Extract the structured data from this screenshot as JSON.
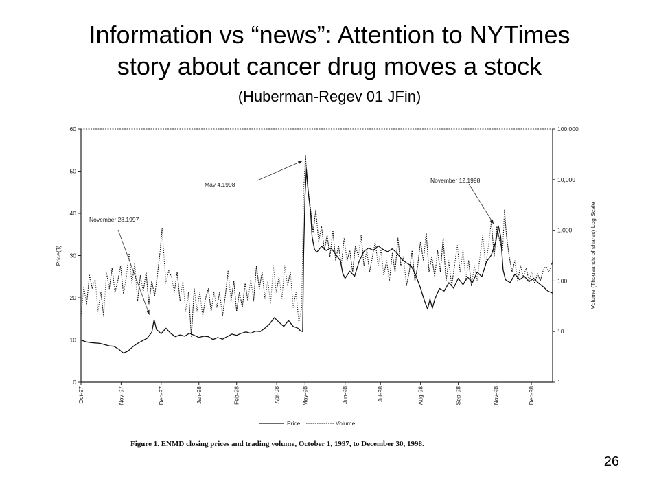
{
  "slide": {
    "title_line1": "Information vs “news”: Attention to NYTimes",
    "title_line2": "story about cancer drug moves a stock",
    "subtitle": "(Huberman-Regev 01 JFin)",
    "page_number": "26"
  },
  "chart_data": {
    "type": "line",
    "caption": "Figure 1. ENMD closing prices and trading volume, October 1, 1997, to December 30, 1998.",
    "xlabel": "",
    "ylabel": "Price($)",
    "y2label": "Volume (Thousands of shares) Log Scale",
    "ylim": [
      0,
      60
    ],
    "y2lim": [
      1,
      100000
    ],
    "y2_scale": "log",
    "y_ticks": [
      "0",
      "10",
      "20",
      "30",
      "40",
      "50",
      "60"
    ],
    "y2_ticks": [
      "1",
      "10",
      "100",
      "1,000",
      "10,000",
      "100,000"
    ],
    "x_ticks": [
      "Oct-97",
      "Nov-97",
      "Dec-97",
      "Jan-98",
      "Feb-98",
      "Apr-98",
      "May-98",
      "Jun-98",
      "Jul-98",
      "Aug-98",
      "Sep-98",
      "Nov-98",
      "Dec-98"
    ],
    "legend": [
      "Price",
      "Volume"
    ],
    "legend_position": "bottom",
    "annotations": [
      {
        "text": "November 28,1997",
        "x": 0.145,
        "y": 15.5
      },
      {
        "text": "May 4,1998",
        "x": 0.47,
        "y": 52
      },
      {
        "text": "November 12,1998",
        "x": 0.875,
        "y": 37
      }
    ],
    "series": [
      {
        "name": "Price",
        "style": "solid",
        "points": [
          [
            0,
            10
          ],
          [
            0.01,
            9.6
          ],
          [
            0.02,
            9.4
          ],
          [
            0.03,
            9.3
          ],
          [
            0.04,
            9.2
          ],
          [
            0.05,
            8.9
          ],
          [
            0.06,
            8.6
          ],
          [
            0.07,
            8.5
          ],
          [
            0.08,
            7.8
          ],
          [
            0.09,
            6.9
          ],
          [
            0.1,
            7.4
          ],
          [
            0.11,
            8.4
          ],
          [
            0.12,
            9.2
          ],
          [
            0.13,
            9.8
          ],
          [
            0.14,
            10.4
          ],
          [
            0.15,
            11.8
          ],
          [
            0.155,
            14.8
          ],
          [
            0.16,
            12.5
          ],
          [
            0.17,
            11.5
          ],
          [
            0.18,
            12.8
          ],
          [
            0.19,
            11.6
          ],
          [
            0.2,
            10.8
          ],
          [
            0.21,
            11.2
          ],
          [
            0.22,
            10.9
          ],
          [
            0.23,
            11.6
          ],
          [
            0.24,
            11.1
          ],
          [
            0.25,
            10.6
          ],
          [
            0.26,
            10.9
          ],
          [
            0.27,
            10.8
          ],
          [
            0.28,
            10.1
          ],
          [
            0.29,
            10.6
          ],
          [
            0.3,
            10.2
          ],
          [
            0.31,
            10.8
          ],
          [
            0.32,
            11.4
          ],
          [
            0.33,
            11.1
          ],
          [
            0.34,
            11.6
          ],
          [
            0.35,
            11.9
          ],
          [
            0.36,
            11.6
          ],
          [
            0.37,
            12.1
          ],
          [
            0.38,
            12.0
          ],
          [
            0.39,
            12.8
          ],
          [
            0.4,
            13.8
          ],
          [
            0.41,
            15.3
          ],
          [
            0.42,
            14.2
          ],
          [
            0.43,
            13.2
          ],
          [
            0.44,
            14.6
          ],
          [
            0.45,
            13.2
          ],
          [
            0.46,
            12.8
          ],
          [
            0.465,
            12.2
          ],
          [
            0.47,
            12.0
          ],
          [
            0.472,
            30.0
          ],
          [
            0.475,
            44.0
          ],
          [
            0.478,
            50.5
          ],
          [
            0.482,
            45.0
          ],
          [
            0.487,
            40.0
          ],
          [
            0.49,
            34.5
          ],
          [
            0.495,
            31.5
          ],
          [
            0.5,
            30.8
          ],
          [
            0.51,
            32.2
          ],
          [
            0.52,
            31.2
          ],
          [
            0.53,
            31.8
          ],
          [
            0.54,
            30.3
          ],
          [
            0.55,
            28.8
          ],
          [
            0.555,
            25.8
          ],
          [
            0.56,
            24.6
          ],
          [
            0.57,
            26.3
          ],
          [
            0.58,
            25.1
          ],
          [
            0.59,
            28.7
          ],
          [
            0.6,
            31.0
          ],
          [
            0.61,
            31.8
          ],
          [
            0.62,
            31.2
          ],
          [
            0.63,
            32.3
          ],
          [
            0.64,
            31.5
          ],
          [
            0.65,
            30.9
          ],
          [
            0.66,
            31.6
          ],
          [
            0.67,
            30.6
          ],
          [
            0.68,
            29.1
          ],
          [
            0.69,
            28.3
          ],
          [
            0.7,
            27.6
          ],
          [
            0.71,
            25.3
          ],
          [
            0.72,
            22.3
          ],
          [
            0.725,
            20.4
          ],
          [
            0.73,
            18.8
          ],
          [
            0.735,
            17.3
          ],
          [
            0.74,
            19.7
          ],
          [
            0.745,
            17.5
          ],
          [
            0.75,
            19.6
          ],
          [
            0.76,
            22.2
          ],
          [
            0.77,
            21.6
          ],
          [
            0.78,
            23.6
          ],
          [
            0.79,
            22.3
          ],
          [
            0.8,
            24.6
          ],
          [
            0.81,
            23.1
          ],
          [
            0.82,
            24.9
          ],
          [
            0.83,
            23.6
          ],
          [
            0.84,
            26.1
          ],
          [
            0.85,
            25.0
          ],
          [
            0.86,
            28.6
          ],
          [
            0.87,
            30.1
          ],
          [
            0.88,
            33.6
          ],
          [
            0.885,
            37.0
          ],
          [
            0.89,
            34.5
          ],
          [
            0.895,
            26.6
          ],
          [
            0.9,
            24.3
          ],
          [
            0.91,
            23.6
          ],
          [
            0.92,
            25.6
          ],
          [
            0.93,
            24.3
          ],
          [
            0.94,
            25.1
          ],
          [
            0.95,
            23.8
          ],
          [
            0.96,
            24.6
          ],
          [
            0.97,
            23.5
          ],
          [
            0.98,
            22.6
          ],
          [
            0.99,
            21.6
          ],
          [
            1.0,
            21.1
          ]
        ]
      },
      {
        "name": "Volume",
        "style": "dotted",
        "points": [
          [
            0,
            20
          ],
          [
            0.006,
            75
          ],
          [
            0.012,
            35
          ],
          [
            0.018,
            130
          ],
          [
            0.024,
            70
          ],
          [
            0.03,
            110
          ],
          [
            0.036,
            25
          ],
          [
            0.042,
            60
          ],
          [
            0.048,
            20
          ],
          [
            0.054,
            150
          ],
          [
            0.06,
            70
          ],
          [
            0.066,
            180
          ],
          [
            0.072,
            60
          ],
          [
            0.078,
            100
          ],
          [
            0.084,
            200
          ],
          [
            0.09,
            55
          ],
          [
            0.096,
            120
          ],
          [
            0.102,
            350
          ],
          [
            0.108,
            90
          ],
          [
            0.114,
            220
          ],
          [
            0.12,
            40
          ],
          [
            0.126,
            130
          ],
          [
            0.132,
            60
          ],
          [
            0.138,
            150
          ],
          [
            0.144,
            35
          ],
          [
            0.15,
            100
          ],
          [
            0.156,
            50
          ],
          [
            0.162,
            130
          ],
          [
            0.168,
            400
          ],
          [
            0.172,
            1100
          ],
          [
            0.176,
            300
          ],
          [
            0.18,
            90
          ],
          [
            0.186,
            160
          ],
          [
            0.192,
            120
          ],
          [
            0.198,
            60
          ],
          [
            0.204,
            150
          ],
          [
            0.21,
            40
          ],
          [
            0.216,
            100
          ],
          [
            0.222,
            25
          ],
          [
            0.228,
            60
          ],
          [
            0.234,
            8
          ],
          [
            0.24,
            70
          ],
          [
            0.246,
            25
          ],
          [
            0.252,
            60
          ],
          [
            0.258,
            20
          ],
          [
            0.264,
            45
          ],
          [
            0.27,
            70
          ],
          [
            0.276,
            25
          ],
          [
            0.282,
            60
          ],
          [
            0.288,
            30
          ],
          [
            0.294,
            60
          ],
          [
            0.3,
            20
          ],
          [
            0.306,
            50
          ],
          [
            0.312,
            160
          ],
          [
            0.318,
            40
          ],
          [
            0.324,
            100
          ],
          [
            0.33,
            25
          ],
          [
            0.336,
            60
          ],
          [
            0.342,
            30
          ],
          [
            0.348,
            90
          ],
          [
            0.354,
            40
          ],
          [
            0.36,
            110
          ],
          [
            0.366,
            40
          ],
          [
            0.372,
            200
          ],
          [
            0.378,
            70
          ],
          [
            0.384,
            150
          ],
          [
            0.39,
            45
          ],
          [
            0.396,
            100
          ],
          [
            0.402,
            35
          ],
          [
            0.408,
            200
          ],
          [
            0.414,
            60
          ],
          [
            0.42,
            120
          ],
          [
            0.426,
            45
          ],
          [
            0.432,
            200
          ],
          [
            0.438,
            80
          ],
          [
            0.444,
            150
          ],
          [
            0.45,
            30
          ],
          [
            0.456,
            60
          ],
          [
            0.462,
            15
          ],
          [
            0.468,
            30
          ],
          [
            0.472,
            6000
          ],
          [
            0.476,
            30000
          ],
          [
            0.48,
            8000
          ],
          [
            0.486,
            3000
          ],
          [
            0.492,
            900
          ],
          [
            0.498,
            2500
          ],
          [
            0.504,
            600
          ],
          [
            0.51,
            1200
          ],
          [
            0.516,
            400
          ],
          [
            0.522,
            800
          ],
          [
            0.528,
            300
          ],
          [
            0.534,
            1000
          ],
          [
            0.54,
            250
          ],
          [
            0.546,
            500
          ],
          [
            0.552,
            200
          ],
          [
            0.558,
            700
          ],
          [
            0.564,
            250
          ],
          [
            0.57,
            400
          ],
          [
            0.576,
            150
          ],
          [
            0.582,
            500
          ],
          [
            0.588,
            300
          ],
          [
            0.594,
            800
          ],
          [
            0.6,
            200
          ],
          [
            0.606,
            400
          ],
          [
            0.612,
            150
          ],
          [
            0.618,
            300
          ],
          [
            0.624,
            600
          ],
          [
            0.63,
            200
          ],
          [
            0.636,
            400
          ],
          [
            0.642,
            130
          ],
          [
            0.648,
            250
          ],
          [
            0.654,
            100
          ],
          [
            0.66,
            350
          ],
          [
            0.666,
            150
          ],
          [
            0.672,
            700
          ],
          [
            0.678,
            200
          ],
          [
            0.684,
            300
          ],
          [
            0.69,
            80
          ],
          [
            0.696,
            150
          ],
          [
            0.702,
            400
          ],
          [
            0.708,
            100
          ],
          [
            0.714,
            200
          ],
          [
            0.72,
            600
          ],
          [
            0.726,
            250
          ],
          [
            0.732,
            900
          ],
          [
            0.738,
            150
          ],
          [
            0.744,
            300
          ],
          [
            0.75,
            120
          ],
          [
            0.756,
            400
          ],
          [
            0.762,
            150
          ],
          [
            0.768,
            700
          ],
          [
            0.774,
            100
          ],
          [
            0.78,
            250
          ],
          [
            0.786,
            80
          ],
          [
            0.792,
            200
          ],
          [
            0.798,
            500
          ],
          [
            0.804,
            150
          ],
          [
            0.81,
            400
          ],
          [
            0.816,
            100
          ],
          [
            0.822,
            250
          ],
          [
            0.828,
            80
          ],
          [
            0.834,
            200
          ],
          [
            0.84,
            100
          ],
          [
            0.846,
            300
          ],
          [
            0.852,
            800
          ],
          [
            0.858,
            200
          ],
          [
            0.864,
            500
          ],
          [
            0.87,
            1500
          ],
          [
            0.876,
            300
          ],
          [
            0.882,
            1200
          ],
          [
            0.888,
            600
          ],
          [
            0.894,
            400
          ],
          [
            0.898,
            2500
          ],
          [
            0.902,
            800
          ],
          [
            0.908,
            300
          ],
          [
            0.914,
            150
          ],
          [
            0.92,
            250
          ],
          [
            0.926,
            100
          ],
          [
            0.932,
            200
          ],
          [
            0.938,
            120
          ],
          [
            0.944,
            180
          ],
          [
            0.95,
            100
          ],
          [
            0.956,
            150
          ],
          [
            0.962,
            90
          ],
          [
            0.968,
            140
          ],
          [
            0.974,
            100
          ],
          [
            0.98,
            160
          ],
          [
            0.986,
            200
          ],
          [
            0.992,
            150
          ],
          [
            1.0,
            240
          ]
        ]
      }
    ]
  }
}
